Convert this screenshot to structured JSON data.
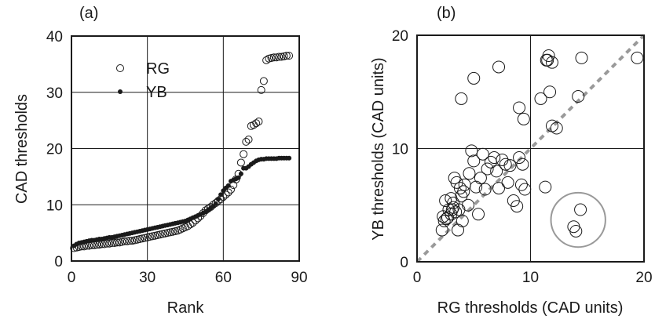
{
  "chart_data": [
    {
      "panel_label": "(a)",
      "type": "scatter",
      "xlabel": "Rank",
      "ylabel": "CAD thresholds",
      "xlim": [
        0,
        90
      ],
      "ylim": [
        0,
        40
      ],
      "xticks": [
        "0",
        "30",
        "60",
        "90"
      ],
      "yticks": [
        "0",
        "10",
        "20",
        "30",
        "40"
      ],
      "grid": true,
      "legend": "top-left",
      "series": [
        {
          "name": "RG",
          "marker": "open-circle",
          "x": [
            1,
            2,
            3,
            4,
            5,
            6,
            7,
            8,
            9,
            10,
            11,
            12,
            13,
            14,
            15,
            16,
            17,
            18,
            19,
            20,
            21,
            22,
            23,
            24,
            25,
            26,
            27,
            28,
            29,
            30,
            31,
            32,
            33,
            34,
            35,
            36,
            37,
            38,
            39,
            40,
            41,
            42,
            43,
            44,
            45,
            46,
            47,
            48,
            49,
            50,
            51,
            52,
            53,
            54,
            55,
            56,
            57,
            58,
            59,
            60,
            61,
            62,
            63,
            64,
            65,
            66,
            67,
            68,
            69,
            70,
            71,
            72,
            73,
            74,
            75,
            76,
            77,
            78,
            79,
            80,
            81,
            82,
            83,
            84,
            85,
            86
          ],
          "y": [
            2.3,
            2.4,
            2.5,
            2.6,
            2.6,
            2.7,
            2.7,
            2.8,
            2.8,
            2.9,
            2.9,
            3.0,
            3.0,
            3.1,
            3.1,
            3.2,
            3.2,
            3.3,
            3.3,
            3.4,
            3.5,
            3.5,
            3.6,
            3.6,
            3.7,
            3.8,
            3.9,
            4.0,
            4.1,
            4.2,
            4.3,
            4.4,
            4.5,
            4.6,
            4.7,
            4.8,
            4.9,
            5.0,
            5.1,
            5.2,
            5.3,
            5.4,
            5.6,
            5.8,
            6.0,
            6.2,
            6.5,
            6.8,
            7.2,
            7.6,
            8.0,
            8.5,
            9.0,
            9.3,
            9.6,
            10.0,
            10.3,
            10.7,
            11.0,
            11.4,
            11.8,
            12.2,
            12.7,
            13.5,
            14.5,
            15.5,
            17.5,
            19.0,
            21.2,
            21.6,
            24.0,
            24.2,
            24.5,
            24.8,
            30.4,
            32.0,
            35.7,
            36.0,
            36.1,
            36.2,
            36.2,
            36.3,
            36.3,
            36.4,
            36.5,
            36.5
          ]
        },
        {
          "name": "YB",
          "marker": "filled-circle",
          "x": [
            1,
            2,
            3,
            4,
            5,
            6,
            7,
            8,
            9,
            10,
            11,
            12,
            13,
            14,
            15,
            16,
            17,
            18,
            19,
            20,
            21,
            22,
            23,
            24,
            25,
            26,
            27,
            28,
            29,
            30,
            31,
            32,
            33,
            34,
            35,
            36,
            37,
            38,
            39,
            40,
            41,
            42,
            43,
            44,
            45,
            46,
            47,
            48,
            49,
            50,
            51,
            52,
            53,
            54,
            55,
            56,
            57,
            58,
            59,
            60,
            61,
            62,
            63,
            64,
            65,
            66,
            67,
            68,
            69,
            70,
            71,
            72,
            73,
            74,
            75,
            76,
            77,
            78,
            79,
            80,
            81,
            82,
            83,
            84,
            85,
            86
          ],
          "y": [
            2.7,
            3.0,
            3.2,
            3.3,
            3.4,
            3.5,
            3.6,
            3.7,
            3.7,
            3.8,
            3.9,
            3.9,
            4.0,
            4.1,
            4.2,
            4.2,
            4.3,
            4.4,
            4.5,
            4.6,
            4.7,
            4.8,
            4.9,
            5.0,
            5.1,
            5.2,
            5.3,
            5.4,
            5.5,
            5.6,
            5.7,
            5.8,
            5.9,
            6.0,
            6.1,
            6.2,
            6.3,
            6.4,
            6.5,
            6.6,
            6.7,
            6.8,
            6.9,
            7.0,
            7.1,
            7.3,
            7.5,
            7.7,
            7.9,
            8.1,
            8.3,
            8.5,
            8.8,
            9.1,
            9.4,
            9.7,
            10.2,
            11.0,
            11.8,
            12.5,
            13.0,
            13.4,
            14.2,
            14.4,
            14.6,
            14.8,
            15.5,
            16.5,
            16.5,
            16.8,
            17.2,
            17.5,
            17.8,
            18.0,
            18.1,
            18.1,
            18.2,
            18.2,
            18.2,
            18.2,
            18.2,
            18.3,
            18.3,
            18.3,
            18.3,
            18.3
          ]
        }
      ]
    },
    {
      "panel_label": "(b)",
      "type": "scatter",
      "xlabel": "RG thresholds (CAD units)",
      "ylabel": "YB thresholds (CAD units)",
      "xlim": [
        0,
        20
      ],
      "ylim": [
        0,
        20
      ],
      "xticks": [
        "0",
        "10",
        "20"
      ],
      "yticks": [
        "0",
        "10",
        "20"
      ],
      "grid": true,
      "diagonal": "y = x (dashed grey)",
      "highlight_circle": {
        "cx": 14.2,
        "cy": 3.7,
        "r": 2.4,
        "color": "#999999"
      },
      "series": [
        {
          "marker": "open-circle",
          "x": [
            2.2,
            2.3,
            2.4,
            2.6,
            2.5,
            2.8,
            2.7,
            3.0,
            3.1,
            3.2,
            3.0,
            3.3,
            3.4,
            3.5,
            3.2,
            3.6,
            3.7,
            3.8,
            4.0,
            4.1,
            4.2,
            3.9,
            4.5,
            4.6,
            4.8,
            5.0,
            5.2,
            5.4,
            5.6,
            5.8,
            6.0,
            6.2,
            6.5,
            6.8,
            7.0,
            7.2,
            7.5,
            7.8,
            8.0,
            8.2,
            8.5,
            8.8,
            9.0,
            9.2,
            9.3,
            9.5,
            10.9,
            11.3,
            11.5,
            11.7,
            11.9,
            12.3,
            14.5,
            14.2,
            19.4,
            3.9,
            5.0,
            7.2,
            9.0,
            9.4,
            13.8,
            14.4,
            14.0,
            11.4,
            11.6,
            11.9
          ],
          "y": [
            2.8,
            4.0,
            3.6,
            3.8,
            5.4,
            4.6,
            3.9,
            4.2,
            4.6,
            4.8,
            5.6,
            7.4,
            4.4,
            7.0,
            5.2,
            2.8,
            4.6,
            6.5,
            3.6,
            6.2,
            6.8,
            5.8,
            5.0,
            7.8,
            9.8,
            8.9,
            6.6,
            4.2,
            7.4,
            9.5,
            6.4,
            8.2,
            8.8,
            9.2,
            8.0,
            6.5,
            9.0,
            8.6,
            7.0,
            8.5,
            5.4,
            4.9,
            9.2,
            6.8,
            8.6,
            6.4,
            14.4,
            6.6,
            17.8,
            15.0,
            12.0,
            11.8,
            18.0,
            14.6,
            18.0,
            14.4,
            16.2,
            17.2,
            13.6,
            12.6,
            3.1,
            4.6,
            2.7,
            17.8,
            18.2,
            17.6
          ]
        }
      ]
    }
  ]
}
